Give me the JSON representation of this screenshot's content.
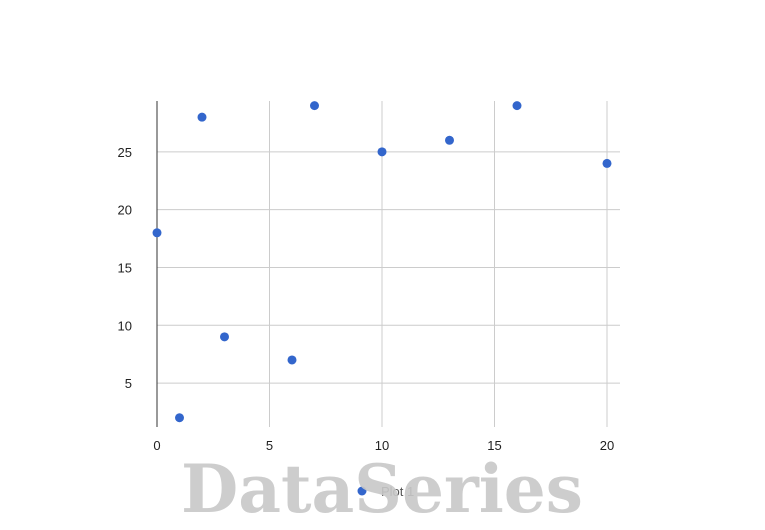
{
  "chart_data": {
    "type": "scatter",
    "title": "",
    "xlabel": "",
    "ylabel": "",
    "x_ticks": [
      0,
      5,
      10,
      15,
      20
    ],
    "y_ticks": [
      5,
      10,
      15,
      20,
      25
    ],
    "xlim": [
      0,
      20
    ],
    "ylim": [
      1.2,
      29.4
    ],
    "grid": true,
    "legend_position": "bottom",
    "series": [
      {
        "name": "Plot 1",
        "color": "#3366cc",
        "points": [
          {
            "x": 0,
            "y": 18
          },
          {
            "x": 1,
            "y": 2
          },
          {
            "x": 2,
            "y": 28
          },
          {
            "x": 3,
            "y": 9
          },
          {
            "x": 6,
            "y": 7
          },
          {
            "x": 7,
            "y": 29
          },
          {
            "x": 10,
            "y": 25
          },
          {
            "x": 13,
            "y": 26
          },
          {
            "x": 16,
            "y": 29
          },
          {
            "x": 20,
            "y": 24
          }
        ]
      }
    ]
  },
  "legend": {
    "label": "Plot 1"
  },
  "watermark": {
    "text": "DataSeries"
  },
  "colors": {
    "grid": "#cccccc",
    "axis": "#333333",
    "series": "#3366cc",
    "watermark": "#c8c8c8"
  }
}
